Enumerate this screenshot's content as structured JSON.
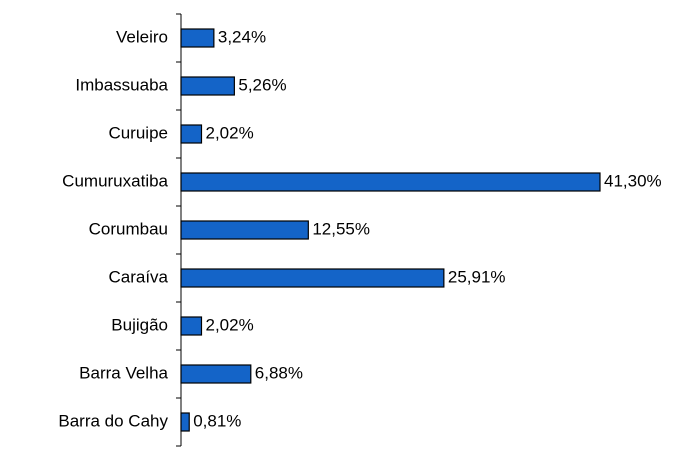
{
  "chart_data": {
    "type": "bar",
    "orientation": "horizontal",
    "categories": [
      "Veleiro",
      "Imbassuaba",
      "Curuipe",
      "Cumuruxatiba",
      "Corumbau",
      "Caraíva",
      "Bujigão",
      "Barra Velha",
      "Barra do Cahy"
    ],
    "values": [
      3.24,
      5.26,
      2.02,
      41.3,
      12.55,
      25.91,
      2.02,
      6.88,
      0.81
    ],
    "value_labels": [
      "3,24%",
      "5,26%",
      "2,02%",
      "41,30%",
      "12,55%",
      "25,91%",
      "2,02%",
      "6,88%",
      "0,81%"
    ],
    "color": "#1464c8"
  }
}
